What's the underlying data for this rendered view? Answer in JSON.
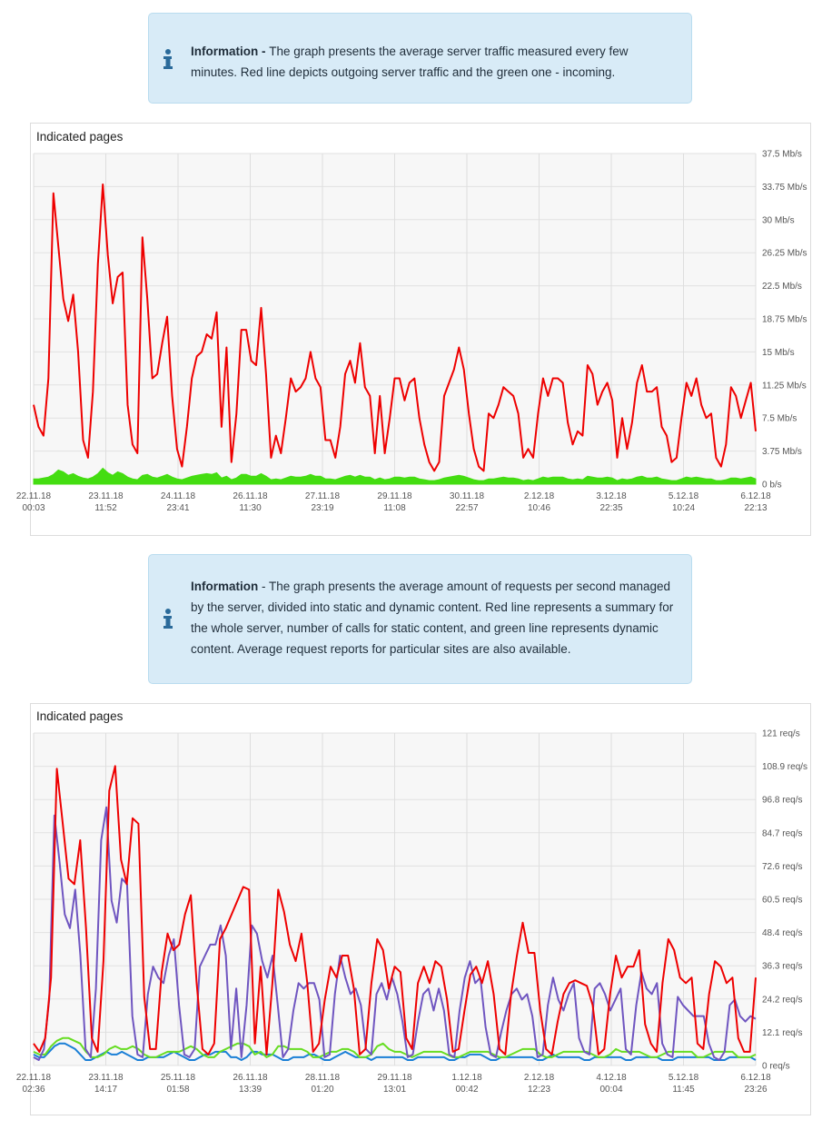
{
  "info1": {
    "label": "Information - ",
    "text": "The graph presents the average server traffic measured every few minutes. Red line depicts outgoing server traffic and the green one - incoming."
  },
  "info2": {
    "label": "Information",
    "text": " - The graph presents the average amount of requests per second managed by the server, divided into static and dynamic content. Red line represents a summary for the whole server, number of calls for static content, and green line represents dynamic content. Average request reports for particular sites are also available."
  },
  "colors": {
    "outgoing": "#ee0000",
    "incoming": "#44dd11",
    "total": "#ee0000",
    "static": "#6f55c0",
    "dynamic": "#66dd22",
    "other": "#1a7fd6",
    "info_bg": "#d8ebf7",
    "info_icon": "#2a6a9a"
  },
  "chart_data": [
    {
      "type": "line",
      "title": "Indicated pages",
      "ylim": [
        0,
        37.5
      ],
      "y_ticks": [
        "0 b/s",
        "3.75 Mb/s",
        "7.5 Mb/s",
        "11.25 Mb/s",
        "15 Mb/s",
        "18.75 Mb/s",
        "22.5 Mb/s",
        "26.25 Mb/s",
        "30 Mb/s",
        "33.75 Mb/s",
        "37.5 Mb/s"
      ],
      "x_ticks": [
        {
          "date": "22.11.18",
          "time": "00:03"
        },
        {
          "date": "23.11.18",
          "time": "11:52"
        },
        {
          "date": "24.11.18",
          "time": "23:41"
        },
        {
          "date": "26.11.18",
          "time": "11:30"
        },
        {
          "date": "27.11.18",
          "time": "23:19"
        },
        {
          "date": "29.11.18",
          "time": "11:08"
        },
        {
          "date": "30.11.18",
          "time": "22:57"
        },
        {
          "date": "2.12.18",
          "time": "10:46"
        },
        {
          "date": "3.12.18",
          "time": "22:35"
        },
        {
          "date": "5.12.18",
          "time": "10:24"
        },
        {
          "date": "6.12.18",
          "time": "22:13"
        }
      ],
      "grid": true,
      "series": [
        {
          "key": "outgoing",
          "style": "line",
          "values": [
            9,
            6.5,
            5.5,
            12,
            33,
            27,
            21,
            18.5,
            21.5,
            15,
            5,
            3,
            10.5,
            25,
            34,
            26,
            20.5,
            23.5,
            24,
            9,
            4.5,
            3.5,
            28,
            21,
            12,
            12.5,
            16,
            19,
            10,
            4,
            2,
            6.5,
            12,
            14.5,
            15,
            17,
            16.5,
            19.5,
            6.5,
            15.5,
            2.5,
            8,
            17.5,
            17.5,
            14,
            13.5,
            20,
            12.5,
            3,
            5.5,
            3.5,
            7.5,
            12,
            10.5,
            11,
            12,
            15,
            12,
            11,
            5,
            5,
            3,
            6.5,
            12.5,
            14,
            11.5,
            16,
            11,
            10,
            3.5,
            10,
            3.5,
            7.5,
            12,
            12,
            9.5,
            11.5,
            12,
            7.5,
            4.5,
            2.5,
            1.5,
            2.5,
            10,
            11.5,
            13,
            15.5,
            13,
            8,
            4,
            2,
            1.5,
            8,
            7.5,
            9,
            11,
            10.5,
            10,
            8,
            3,
            4,
            3,
            8,
            12,
            10,
            12,
            12,
            11.5,
            7,
            4.5,
            6,
            5.5,
            13.5,
            12.5,
            9,
            10.5,
            11.5,
            9.5,
            3,
            7.5,
            4,
            7,
            11.5,
            13.5,
            10.5,
            10.5,
            11,
            6.5,
            5.5,
            2.5,
            3,
            7.5,
            11.5,
            10,
            12,
            9,
            7.5,
            8,
            3,
            2,
            4.5,
            11,
            10,
            7.5,
            9.5,
            11.5,
            6
          ]
        },
        {
          "key": "incoming",
          "style": "area",
          "values": [
            0.6,
            0.6,
            0.7,
            0.8,
            1.1,
            1.6,
            1.4,
            1.0,
            1.2,
            0.9,
            0.7,
            0.6,
            0.8,
            1.2,
            1.8,
            1.3,
            1.0,
            1.4,
            1.2,
            0.8,
            0.6,
            0.5,
            1.0,
            1.1,
            0.8,
            0.7,
            0.9,
            1.1,
            0.8,
            0.6,
            0.5,
            0.7,
            0.9,
            1.0,
            1.1,
            1.2,
            1.1,
            1.3,
            0.7,
            0.9,
            0.5,
            0.7,
            1.1,
            1.1,
            0.9,
            0.9,
            1.2,
            0.9,
            0.5,
            0.6,
            0.5,
            0.7,
            0.9,
            0.8,
            0.8,
            0.9,
            1.1,
            0.9,
            0.9,
            0.6,
            0.6,
            0.5,
            0.7,
            0.9,
            1.0,
            0.8,
            1.0,
            0.8,
            0.8,
            0.5,
            0.7,
            0.5,
            0.6,
            0.8,
            0.8,
            0.7,
            0.8,
            0.8,
            0.6,
            0.5,
            0.4,
            0.4,
            0.5,
            0.7,
            0.8,
            0.9,
            1.0,
            0.9,
            0.7,
            0.5,
            0.4,
            0.4,
            0.6,
            0.6,
            0.7,
            0.8,
            0.7,
            0.7,
            0.6,
            0.4,
            0.5,
            0.4,
            0.6,
            0.8,
            0.7,
            0.8,
            0.8,
            0.8,
            0.6,
            0.5,
            0.6,
            0.5,
            0.9,
            0.8,
            0.7,
            0.7,
            0.8,
            0.7,
            0.4,
            0.6,
            0.5,
            0.6,
            0.8,
            0.9,
            0.7,
            0.7,
            0.8,
            0.6,
            0.5,
            0.4,
            0.4,
            0.6,
            0.8,
            0.7,
            0.8,
            0.7,
            0.6,
            0.6,
            0.4,
            0.4,
            0.5,
            0.7,
            0.7,
            0.6,
            0.7,
            0.8,
            0.6
          ]
        }
      ]
    },
    {
      "type": "line",
      "title": "Indicated pages",
      "ylim": [
        0,
        121
      ],
      "y_ticks": [
        "0 req/s",
        "12.1 req/s",
        "24.2 req/s",
        "36.3 req/s",
        "48.4 req/s",
        "60.5 req/s",
        "72.6 req/s",
        "84.7 req/s",
        "96.8 req/s",
        "108.9 req/s",
        "121 req/s"
      ],
      "x_ticks": [
        {
          "date": "22.11.18",
          "time": "02:36"
        },
        {
          "date": "23.11.18",
          "time": "14:17"
        },
        {
          "date": "25.11.18",
          "time": "01:58"
        },
        {
          "date": "26.11.18",
          "time": "13:39"
        },
        {
          "date": "28.11.18",
          "time": "01:20"
        },
        {
          "date": "29.11.18",
          "time": "13:01"
        },
        {
          "date": "1.12.18",
          "time": "00:42"
        },
        {
          "date": "2.12.18",
          "time": "12:23"
        },
        {
          "date": "4.12.18",
          "time": "00:04"
        },
        {
          "date": "5.12.18",
          "time": "11:45"
        },
        {
          "date": "6.12.18",
          "time": "23:26"
        }
      ],
      "grid": true,
      "series": [
        {
          "key": "total",
          "values": [
            8,
            5,
            10,
            32,
            108,
            88,
            68,
            66,
            82,
            50,
            10,
            5,
            38,
            100,
            109,
            75,
            66,
            90,
            88,
            25,
            6,
            6,
            34,
            48,
            42,
            44,
            55,
            62,
            30,
            6,
            4,
            8,
            46,
            50,
            55,
            60,
            65,
            64,
            8,
            36,
            4,
            30,
            64,
            56,
            44,
            38,
            48,
            30,
            5,
            8,
            24,
            36,
            32,
            40,
            40,
            28,
            4,
            6,
            30,
            46,
            42,
            28,
            36,
            34,
            10,
            6,
            30,
            36,
            30,
            38,
            36,
            24,
            5,
            6,
            20,
            33,
            36,
            30,
            38,
            26,
            6,
            4,
            26,
            40,
            52,
            41,
            41,
            20,
            6,
            4,
            16,
            26,
            30,
            31,
            30,
            29,
            22,
            4,
            6,
            26,
            40,
            32,
            36,
            36,
            42,
            15,
            8,
            5,
            30,
            46,
            42,
            32,
            30,
            32,
            8,
            6,
            26,
            38,
            36,
            30,
            32,
            10,
            5,
            5,
            32
          ],
          "limit": 125
        },
        {
          "key": "static",
          "values": [
            3,
            2,
            6,
            24,
            91,
            74,
            55,
            50,
            64,
            40,
            6,
            3,
            28,
            82,
            94,
            60,
            52,
            68,
            66,
            18,
            4,
            3,
            26,
            36,
            32,
            30,
            40,
            46,
            22,
            4,
            3,
            6,
            36,
            40,
            44,
            44,
            51,
            40,
            6,
            28,
            3,
            22,
            51,
            48,
            38,
            32,
            40,
            22,
            3,
            6,
            20,
            30,
            28,
            30,
            30,
            24,
            3,
            4,
            26,
            40,
            32,
            26,
            28,
            22,
            6,
            4,
            26,
            30,
            24,
            32,
            26,
            16,
            3,
            4,
            16,
            26,
            28,
            20,
            28,
            20,
            4,
            3,
            20,
            32,
            38,
            30,
            32,
            14,
            4,
            3,
            12,
            20,
            26,
            28,
            24,
            26,
            18,
            3,
            4,
            22,
            32,
            24,
            20,
            26,
            30,
            10,
            5,
            4,
            28,
            30,
            26,
            20,
            24,
            28,
            6,
            4,
            22,
            34,
            28,
            26,
            30,
            8,
            4,
            3,
            25,
            22,
            20,
            18,
            18,
            18,
            8,
            3,
            2,
            5,
            22,
            24,
            18,
            16,
            18,
            17
          ]
        },
        {
          "key": "dynamic",
          "values": [
            5,
            4,
            4,
            7,
            9,
            10,
            10,
            9,
            8,
            5,
            3,
            3,
            4,
            6,
            7,
            6,
            6,
            7,
            6,
            4,
            3,
            3,
            4,
            5,
            5,
            5,
            6,
            7,
            6,
            4,
            3,
            3,
            5,
            6,
            7,
            8,
            8,
            7,
            4,
            5,
            3,
            4,
            7,
            7,
            6,
            6,
            6,
            5,
            3,
            3,
            4,
            5,
            5,
            6,
            6,
            5,
            3,
            3,
            4,
            7,
            8,
            6,
            5,
            5,
            4,
            3,
            4,
            5,
            5,
            5,
            5,
            4,
            3,
            3,
            4,
            5,
            5,
            5,
            5,
            4,
            3,
            3,
            4,
            5,
            6,
            6,
            6,
            4,
            3,
            3,
            4,
            5,
            5,
            5,
            5,
            5,
            4,
            3,
            3,
            4,
            6,
            5,
            5,
            5,
            5,
            4,
            3,
            3,
            4,
            5,
            5,
            5,
            5,
            5,
            3,
            3,
            4,
            5,
            5,
            5,
            5,
            3,
            3,
            3,
            4
          ]
        },
        {
          "key": "other",
          "values": [
            4,
            3,
            3,
            5,
            7,
            8,
            8,
            7,
            6,
            4,
            2,
            2,
            3,
            4,
            5,
            4,
            4,
            5,
            4,
            3,
            2,
            2,
            3,
            3,
            3,
            3,
            4,
            5,
            4,
            3,
            2,
            2,
            3,
            4,
            4,
            5,
            5,
            5,
            3,
            3,
            2,
            3,
            5,
            5,
            4,
            4,
            4,
            3,
            2,
            2,
            3,
            3,
            3,
            4,
            4,
            3,
            2,
            2,
            3,
            4,
            5,
            4,
            3,
            3,
            3,
            2,
            3,
            3,
            3,
            3,
            3,
            3,
            2,
            2,
            3,
            3,
            3,
            3,
            3,
            3,
            2,
            2,
            3,
            3,
            4,
            4,
            4,
            3,
            2,
            2,
            3,
            3,
            3,
            3,
            3,
            3,
            3,
            2,
            2,
            3,
            4,
            3,
            3,
            3,
            3,
            3,
            2,
            2,
            3,
            3,
            3,
            3,
            3,
            3,
            2,
            2,
            3,
            3,
            3,
            3,
            3,
            2,
            2,
            2,
            3,
            3,
            3,
            3,
            3,
            3,
            3,
            2,
            2,
            2,
            3,
            3,
            3,
            3,
            3,
            2
          ]
        }
      ]
    }
  ]
}
